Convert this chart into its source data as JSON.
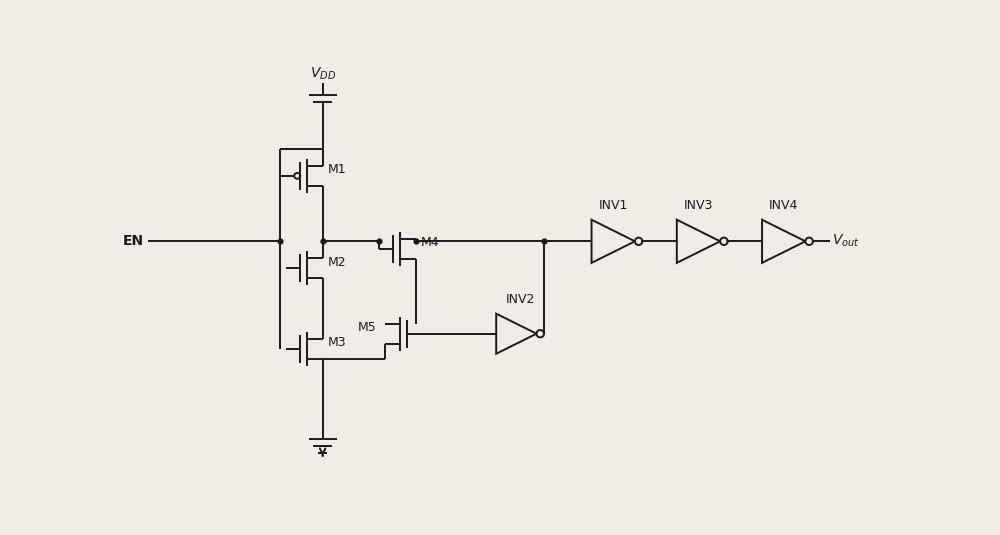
{
  "bg_color": "#f0ede8",
  "line_color": "#1a1a1a",
  "lw": 1.4,
  "fig_width": 10.0,
  "fig_height": 5.35,
  "labels": {
    "VDD": "V$_{DD}$",
    "EN": "EN",
    "M1": "M1",
    "M2": "M2",
    "M3": "M3",
    "M4": "M4",
    "M5": "M5",
    "INV1": "INV1",
    "INV2": "INV2",
    "INV3": "INV3",
    "INV4": "INV4",
    "Vout": "V$_{out}$"
  }
}
